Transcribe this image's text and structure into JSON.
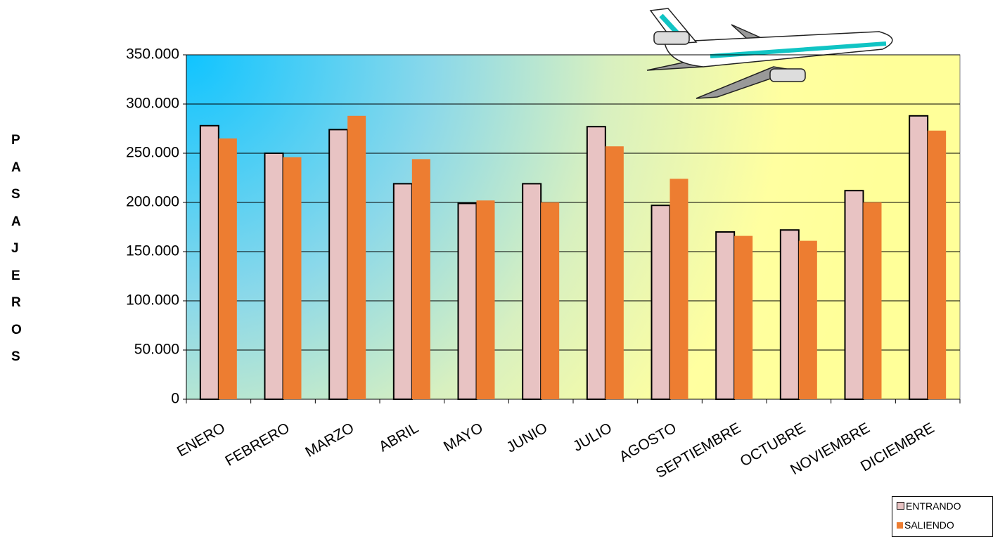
{
  "chart_data": {
    "type": "bar",
    "y_label": "PASAJEROS",
    "categories": [
      "ENERO",
      "FEBRERO",
      "MARZO",
      "ABRIL",
      "MAYO",
      "JUNIO",
      "JULIO",
      "AGOSTO",
      "SEPTIEMBRE",
      "OCTUBRE",
      "NOVIEMBRE",
      "DICIEMBRE"
    ],
    "series": [
      {
        "name": "ENTRANDO",
        "color": "#e8c3c3",
        "values": [
          278000,
          250000,
          274000,
          219000,
          199000,
          219000,
          277000,
          197000,
          170000,
          172000,
          212000,
          288000
        ]
      },
      {
        "name": "SALIENDO",
        "color": "#ed7d31",
        "values": [
          265000,
          246000,
          288000,
          244000,
          202000,
          200000,
          257000,
          224000,
          166000,
          161000,
          200000,
          273000
        ]
      }
    ],
    "ylim": [
      0,
      350000
    ],
    "yticks": [
      0,
      {
        "value": 50000,
        "label": "50.000"
      },
      {
        "value": 100000,
        "label": "100.000"
      },
      {
        "value": 150000,
        "label": "150.000"
      },
      {
        "value": 200000,
        "label": "200.000"
      },
      {
        "value": 250000,
        "label": "250.000"
      },
      {
        "value": 300000,
        "label": "300.000"
      },
      {
        "value": 350000,
        "label": "350.000"
      }
    ],
    "grid": true
  }
}
